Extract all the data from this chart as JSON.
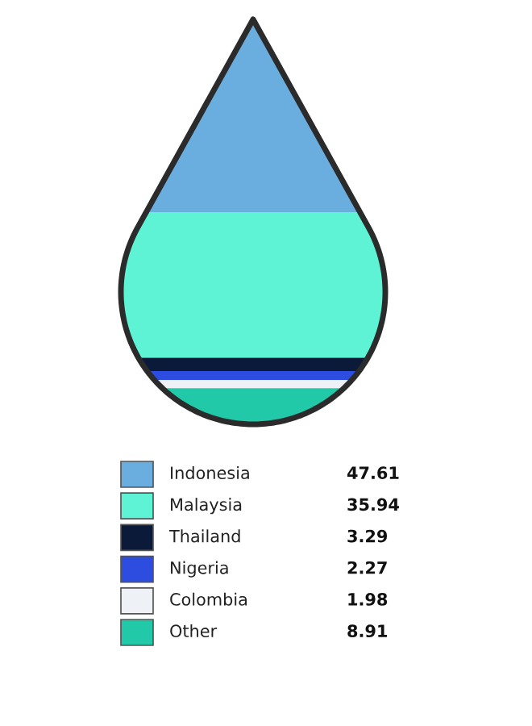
{
  "chart_data": {
    "type": "other",
    "categories": [
      "Indonesia",
      "Malaysia",
      "Thailand",
      "Nigeria",
      "Colombia",
      "Other"
    ],
    "values": [
      47.61,
      35.94,
      3.29,
      2.27,
      1.98,
      8.91
    ],
    "colors": [
      "#6aaee0",
      "#5ef3d4",
      "#0c1a3a",
      "#2c4de0",
      "#eef2f6",
      "#22c9a9"
    ],
    "data_labels": true
  }
}
